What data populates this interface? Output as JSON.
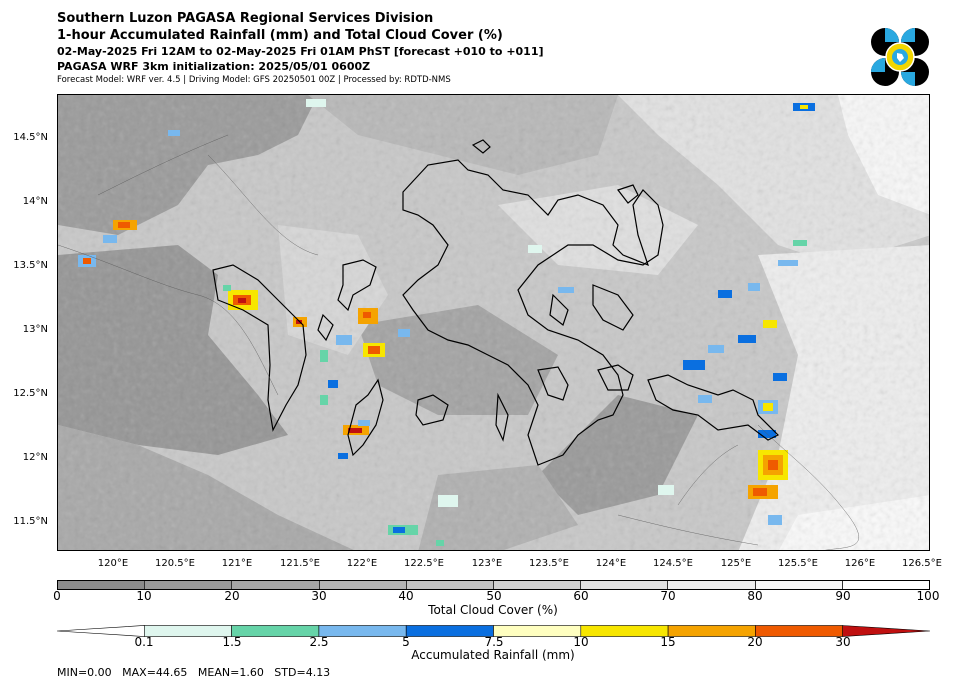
{
  "header": {
    "title": "Southern Luzon PAGASA Regional Services Division",
    "subtitle": "1-hour Accumulated Rainfall (mm) and Total Cloud Cover (%)",
    "valid_time": "02-May-2025 Fri 12AM to 02-May-2025 Fri 01AM PhST [forecast +010 to +011]",
    "init": "PAGASA WRF 3km initialization: 2025/05/01 0600Z",
    "model_info": "Forecast Model: WRF ver. 4.5 | Driving Model: GFS 20250501 00Z | Processed by: RDTD-NMS"
  },
  "logo": {
    "name": "PAGASA logo",
    "colors": [
      "#000000",
      "#29a8e0",
      "#f2d600"
    ]
  },
  "map": {
    "lat_ticks": [
      "14.5°N",
      "14°N",
      "13.5°N",
      "13°N",
      "12.5°N",
      "12°N",
      "11.5°N"
    ],
    "lon_ticks": [
      "120°E",
      "120.5°E",
      "121°E",
      "121.5°E",
      "122°E",
      "122.5°E",
      "123°E",
      "123.5°E",
      "124°E",
      "124.5°E",
      "125°E",
      "125.5°E",
      "126°E",
      "126.5°E"
    ]
  },
  "cloud_colorbar": {
    "label": "Total Cloud Cover (%)",
    "ticks": [
      "0",
      "10",
      "20",
      "30",
      "40",
      "50",
      "60",
      "70",
      "80",
      "90",
      "100"
    ],
    "colors": [
      "#8c8c8c",
      "#999999",
      "#a6a6a6",
      "#b4b4b4",
      "#c3c3c3",
      "#d2d2d2",
      "#e1e1e1",
      "#eeeeee",
      "#f7f7f7",
      "#ffffff"
    ]
  },
  "rain_colorbar": {
    "label": "Accumulated Rainfall (mm)",
    "ticks": [
      "0.1",
      "1.5",
      "2.5",
      "5",
      "7.5",
      "10",
      "15",
      "20",
      "30"
    ],
    "colors": [
      "#ffffff",
      "#dff6ee",
      "#66d4a8",
      "#78b8ee",
      "#0a6fe0",
      "#ffffc0",
      "#f7e600",
      "#f5a300",
      "#ef5a00",
      "#c01010"
    ]
  },
  "stats": "MIN=0.00   MAX=44.65   MEAN=1.60   STD=4.13"
}
